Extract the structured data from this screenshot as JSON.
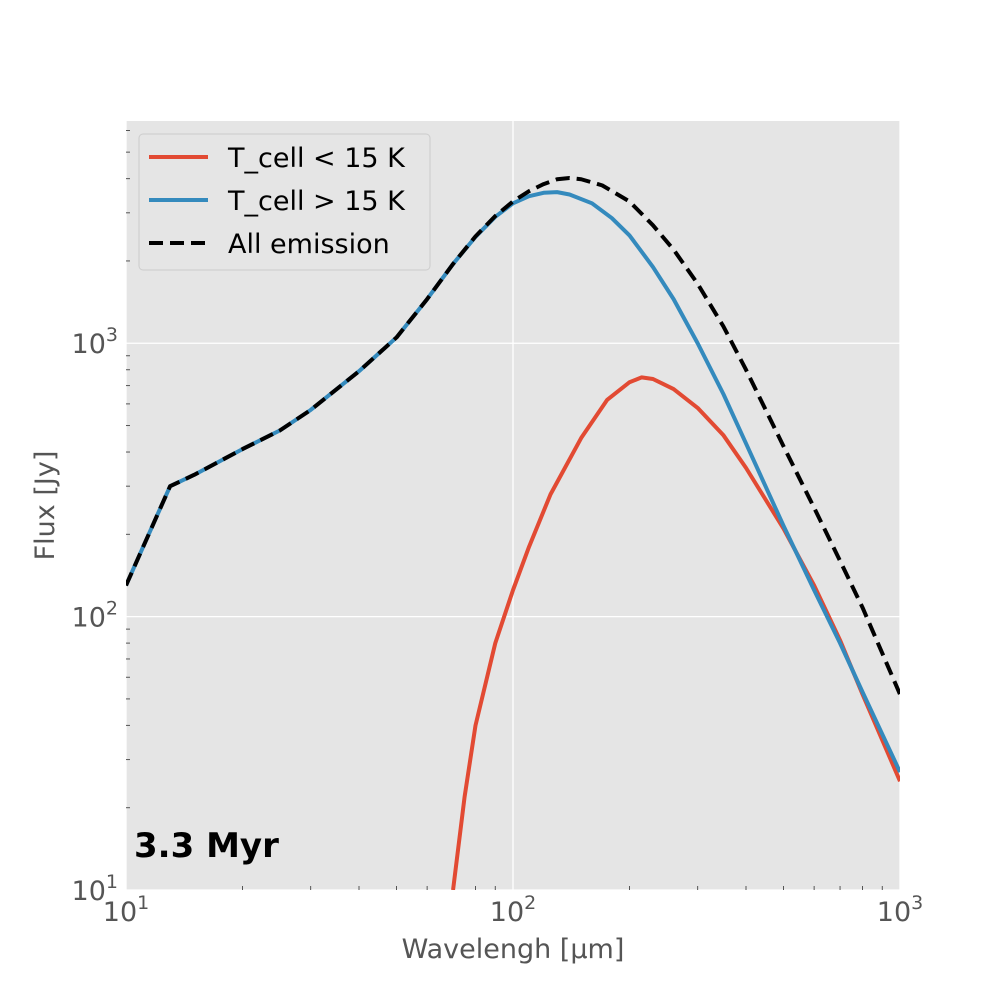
{
  "chart_data": {
    "type": "line",
    "title": "",
    "xlabel": "Wavelengh [μm]",
    "ylabel": "Flux [Jy]",
    "x_scale": "log",
    "y_scale": "log",
    "xlim": [
      10,
      1000
    ],
    "ylim": [
      10,
      6500
    ],
    "grid": true,
    "legend_position": "top-left",
    "x_ticks": [
      {
        "value": 10,
        "base": "10",
        "exp": "1"
      },
      {
        "value": 100,
        "base": "10",
        "exp": "2"
      },
      {
        "value": 1000,
        "base": "10",
        "exp": "3"
      }
    ],
    "y_ticks": [
      {
        "value": 10,
        "base": "10",
        "exp": "1"
      },
      {
        "value": 100,
        "base": "10",
        "exp": "2"
      },
      {
        "value": 1000,
        "base": "10",
        "exp": "3"
      }
    ],
    "annotation": "3.3 Myr",
    "series": [
      {
        "name": "T_cell < 15 K",
        "color": "#e24a33",
        "style": "solid",
        "x": [
          70,
          75,
          80,
          90,
          100,
          110,
          125,
          150,
          175,
          200,
          215,
          230,
          260,
          300,
          350,
          400,
          500,
          600,
          700,
          800,
          1000
        ],
        "y": [
          10,
          22,
          40,
          80,
          125,
          180,
          280,
          450,
          620,
          720,
          750,
          740,
          680,
          580,
          460,
          350,
          210,
          130,
          82,
          52,
          25
        ]
      },
      {
        "name": "T_cell > 15 K",
        "color": "#348abd",
        "style": "solid",
        "x": [
          10,
          13,
          15,
          20,
          25,
          30,
          40,
          50,
          60,
          70,
          80,
          90,
          100,
          110,
          120,
          130,
          140,
          160,
          180,
          200,
          230,
          260,
          300,
          350,
          400,
          500,
          600,
          700,
          800,
          1000
        ],
        "y": [
          130,
          300,
          330,
          410,
          480,
          570,
          790,
          1050,
          1450,
          1950,
          2450,
          2900,
          3250,
          3450,
          3550,
          3570,
          3500,
          3250,
          2870,
          2480,
          1900,
          1450,
          1000,
          650,
          430,
          215,
          125,
          80,
          53,
          27
        ]
      },
      {
        "name": "All emission",
        "color": "#000000",
        "style": "dashed",
        "x": [
          10,
          13,
          15,
          20,
          25,
          30,
          40,
          50,
          60,
          70,
          80,
          90,
          100,
          110,
          120,
          130,
          140,
          150,
          170,
          200,
          230,
          260,
          300,
          350,
          400,
          500,
          600,
          700,
          800,
          1000
        ],
        "y": [
          130,
          300,
          330,
          410,
          480,
          570,
          790,
          1050,
          1450,
          1950,
          2460,
          2920,
          3300,
          3600,
          3820,
          3980,
          4020,
          3980,
          3780,
          3300,
          2700,
          2200,
          1650,
          1150,
          800,
          420,
          250,
          160,
          108,
          52
        ]
      }
    ]
  }
}
